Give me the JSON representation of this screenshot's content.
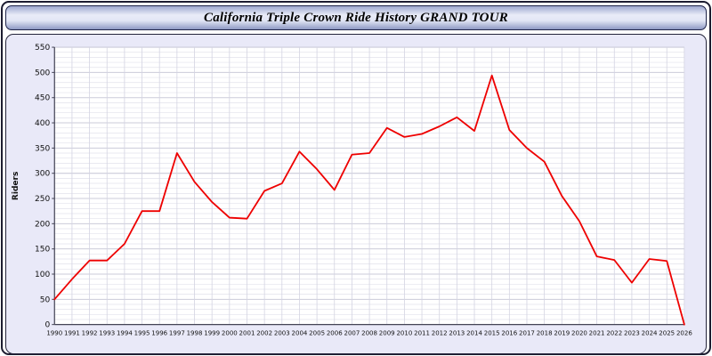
{
  "header": {
    "title": "California Triple Crown Ride History GRAND TOUR"
  },
  "chart_data": {
    "type": "line",
    "title": "California Triple Crown Ride History GRAND TOUR",
    "xlabel": "",
    "ylabel": "Riders",
    "legend": false,
    "grid": true,
    "ylim": [
      0,
      550
    ],
    "ytick_step": 50,
    "yticks": [
      0,
      50,
      100,
      150,
      200,
      250,
      300,
      350,
      400,
      450,
      500,
      550
    ],
    "minor_grid_step": 10,
    "line_color": "#ee0000",
    "plot_bg": "#ffffff",
    "panel_bg": "#e9e9f8",
    "grid_minor_color": "#e2e2ec",
    "grid_major_color": "#cbcbda",
    "grid_vert_color": "#d4d4e2",
    "axis_color": "#444455",
    "x": [
      1990,
      1991,
      1992,
      1993,
      1994,
      1995,
      1996,
      1997,
      1998,
      1999,
      2000,
      2001,
      2002,
      2003,
      2004,
      2005,
      2006,
      2007,
      2008,
      2009,
      2010,
      2011,
      2012,
      2013,
      2014,
      2015,
      2016,
      2017,
      2018,
      2019,
      2020,
      2021,
      2022,
      2023,
      2024,
      2025,
      2026
    ],
    "values": [
      50,
      90,
      127,
      127,
      160,
      225,
      225,
      340,
      283,
      243,
      212,
      210,
      265,
      280,
      343,
      308,
      267,
      337,
      340,
      390,
      372,
      378,
      393,
      411,
      384,
      494,
      386,
      350,
      323,
      255,
      205,
      135,
      128,
      83,
      130,
      126,
      0
    ]
  }
}
